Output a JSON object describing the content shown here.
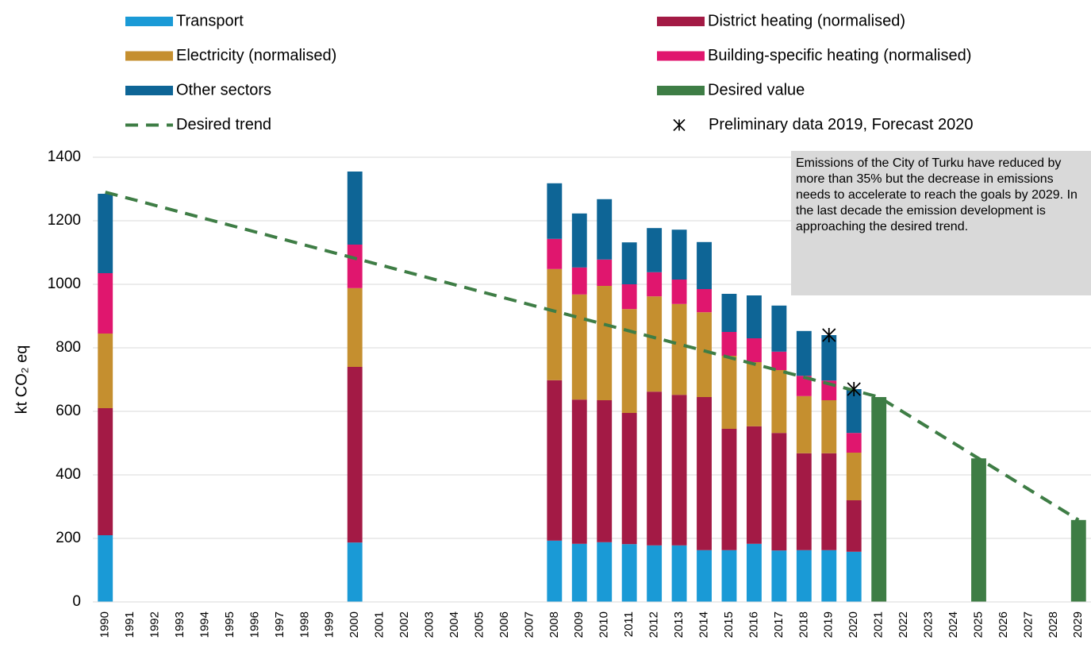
{
  "chart_data": {
    "type": "bar",
    "stacked": true,
    "y_label": "kt CO₂ eq",
    "annotation": "Emissions of the City of Turku have reduced by more than 35% but the decrease in emissions needs to accelerate to reach the goals by 2029. In the last decade the emission development is approaching the desired trend.",
    "categories": [
      "1990",
      "1991",
      "1992",
      "1993",
      "1994",
      "1995",
      "1996",
      "1997",
      "1998",
      "1999",
      "2000",
      "2001",
      "2002",
      "2003",
      "2004",
      "2005",
      "2006",
      "2007",
      "2008",
      "2009",
      "2010",
      "2011",
      "2012",
      "2013",
      "2014",
      "2015",
      "2016",
      "2017",
      "2018",
      "2019",
      "2020",
      "2021",
      "2022",
      "2023",
      "2024",
      "2025",
      "2026",
      "2027",
      "2028",
      "2029"
    ],
    "ylim": [
      0,
      1400
    ],
    "yticks": [
      0,
      200,
      400,
      600,
      800,
      1000,
      1200,
      1400
    ],
    "grid": true,
    "series": [
      {
        "name": "Transport",
        "type": "bar",
        "color": "#1a9ad6",
        "values": [
          210,
          null,
          null,
          null,
          null,
          null,
          null,
          null,
          null,
          null,
          187,
          null,
          null,
          null,
          null,
          null,
          null,
          null,
          193,
          183,
          188,
          182,
          178,
          178,
          163,
          163,
          183,
          162,
          163,
          163,
          158,
          null,
          null,
          null,
          null,
          null,
          null,
          null,
          null,
          null
        ]
      },
      {
        "name": "District heating (normalised)",
        "type": "bar",
        "color": "#a31a45",
        "values": [
          400,
          null,
          null,
          null,
          null,
          null,
          null,
          null,
          null,
          null,
          553,
          null,
          null,
          null,
          null,
          null,
          null,
          null,
          505,
          454,
          447,
          413,
          484,
          474,
          482,
          382,
          370,
          370,
          305,
          305,
          162,
          null,
          null,
          null,
          null,
          null,
          null,
          null,
          null,
          null
        ]
      },
      {
        "name": "Electricity (normalised)",
        "type": "bar",
        "color": "#c58f2f",
        "values": [
          235,
          null,
          null,
          null,
          null,
          null,
          null,
          null,
          null,
          null,
          248,
          null,
          null,
          null,
          null,
          null,
          null,
          null,
          350,
          331,
          360,
          327,
          300,
          286,
          267,
          230,
          202,
          198,
          180,
          167,
          150,
          null,
          null,
          null,
          null,
          null,
          null,
          null,
          null,
          null
        ]
      },
      {
        "name": "Building-specific heating (normalised)",
        "type": "bar",
        "color": "#e0166e",
        "values": [
          190,
          null,
          null,
          null,
          null,
          null,
          null,
          null,
          null,
          null,
          137,
          null,
          null,
          null,
          null,
          null,
          null,
          null,
          95,
          85,
          83,
          78,
          76,
          77,
          73,
          75,
          75,
          58,
          64,
          62,
          62,
          null,
          null,
          null,
          null,
          null,
          null,
          null,
          null,
          null
        ]
      },
      {
        "name": "Other sectors",
        "type": "bar",
        "color": "#0e6596",
        "values": [
          250,
          null,
          null,
          null,
          null,
          null,
          null,
          null,
          null,
          null,
          230,
          null,
          null,
          null,
          null,
          null,
          null,
          null,
          175,
          170,
          190,
          132,
          139,
          157,
          148,
          120,
          135,
          145,
          141,
          143,
          138,
          null,
          null,
          null,
          null,
          null,
          null,
          null,
          null,
          null
        ]
      },
      {
        "name": "Desired value",
        "type": "bar",
        "color": "#3e7d45",
        "values": [
          null,
          null,
          null,
          null,
          null,
          null,
          null,
          null,
          null,
          null,
          null,
          null,
          null,
          null,
          null,
          null,
          null,
          null,
          null,
          null,
          null,
          null,
          null,
          null,
          null,
          null,
          null,
          null,
          null,
          null,
          null,
          645,
          null,
          null,
          null,
          452,
          null,
          null,
          null,
          258
        ]
      },
      {
        "name": "Desired trend",
        "type": "line",
        "color": "#3e7d45",
        "x": [
          "1990",
          "2021",
          "2029"
        ],
        "values": [
          1290,
          645,
          258
        ]
      },
      {
        "name": "Preliminary data 2019, Forecast 2020",
        "type": "scatter",
        "color": "#000000",
        "x": [
          "2019",
          "2020"
        ],
        "values": [
          840,
          670
        ]
      }
    ]
  }
}
